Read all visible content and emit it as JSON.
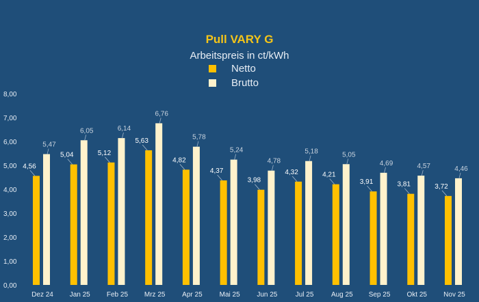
{
  "chart_data": {
    "type": "bar",
    "title": "Pull VARY G",
    "subtitle": "Arbeitspreis in ct/kWh",
    "categories": [
      "Dez 24",
      "Jan 25",
      "Feb 25",
      "Mrz 25",
      "Apr 25",
      "Mai 25",
      "Jun 25",
      "Jul 25",
      "Aug 25",
      "Sep 25",
      "Okt 25",
      "Nov 25"
    ],
    "series": [
      {
        "name": "Netto",
        "color": "#FFC000",
        "values": [
          4.56,
          5.04,
          5.12,
          5.63,
          4.82,
          4.37,
          3.98,
          4.32,
          4.21,
          3.91,
          3.81,
          3.72
        ]
      },
      {
        "name": "Brutto",
        "color": "#FFF2CC",
        "values": [
          5.47,
          6.05,
          6.14,
          6.76,
          5.78,
          5.24,
          4.78,
          5.18,
          5.05,
          4.69,
          4.57,
          4.46
        ]
      }
    ],
    "ylim": [
      0,
      8
    ],
    "yticks": [
      "0,00",
      "1,00",
      "2,00",
      "3,00",
      "4,00",
      "5,00",
      "6,00",
      "7,00",
      "8,00"
    ],
    "grid": false,
    "legend_placement": "top-center",
    "background": "#1F4E79"
  }
}
